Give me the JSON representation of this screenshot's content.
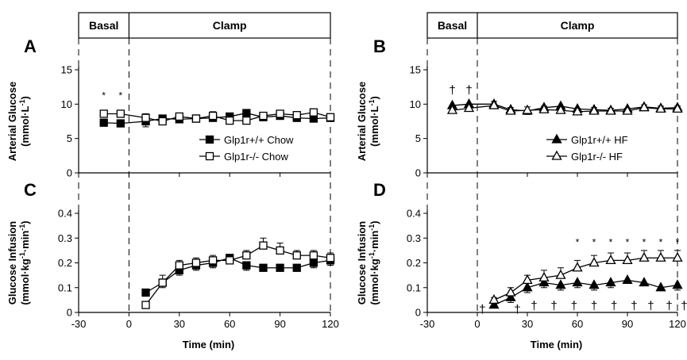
{
  "figure": {
    "phase_labels": {
      "basal": "Basal",
      "clamp": "Clamp"
    },
    "x_ticks": [
      "-30",
      "0",
      "30",
      "60",
      "90",
      "120"
    ],
    "x_label": "Time (min)"
  },
  "chart_data": [
    {
      "panel": "A",
      "type": "line",
      "ylabel_line1": "Arterial Glucose",
      "ylabel_line2": "(mmol·L-1)",
      "xlabel": "",
      "xlim": [
        -30,
        120
      ],
      "ylim": [
        0,
        15
      ],
      "y_ticks": [
        "0",
        "5",
        "10",
        "15"
      ],
      "x": [
        -15,
        -5,
        10,
        20,
        30,
        40,
        50,
        60,
        70,
        80,
        90,
        100,
        110,
        120
      ],
      "series": [
        {
          "name": "Glp1r+/+ Chow",
          "marker": "square",
          "filled": true,
          "values": [
            7.3,
            7.2,
            7.5,
            7.9,
            7.8,
            7.9,
            8.0,
            8.2,
            8.7,
            8.1,
            8.3,
            8.0,
            7.9,
            8.0
          ],
          "errors": [
            0.3,
            0.3,
            0.8,
            0.5,
            0.4,
            0.4,
            0.5,
            0.5,
            0.4,
            0.4,
            0.4,
            0.5,
            0.4,
            0.4
          ]
        },
        {
          "name": "Glp1r-/- Chow",
          "marker": "square",
          "filled": false,
          "values": [
            8.6,
            8.6,
            8.0,
            7.5,
            8.2,
            7.9,
            8.3,
            7.6,
            7.6,
            8.3,
            8.6,
            8.4,
            8.8,
            8.1
          ],
          "errors": [
            0.3,
            0.3,
            0.6,
            0.5,
            0.4,
            0.4,
            0.6,
            0.5,
            0.5,
            0.5,
            0.5,
            0.5,
            0.5,
            0.4
          ]
        }
      ],
      "annotations": [
        {
          "text": "*",
          "x": -15,
          "y": 10.8
        },
        {
          "text": "*",
          "x": -5,
          "y": 10.8
        }
      ]
    },
    {
      "panel": "B",
      "type": "line",
      "ylabel_line1": "Arterial Glucose",
      "ylabel_line2": "(mmol·L-1)",
      "xlabel": "",
      "xlim": [
        -30,
        120
      ],
      "ylim": [
        0,
        15
      ],
      "y_ticks": [
        "0",
        "5",
        "10",
        "15"
      ],
      "x": [
        -15,
        -5,
        10,
        20,
        30,
        40,
        50,
        60,
        70,
        80,
        90,
        100,
        110,
        120
      ],
      "series": [
        {
          "name": "Glp1r+/+ HF",
          "marker": "triangle",
          "filled": true,
          "values": [
            9.8,
            10.0,
            10.0,
            9.2,
            9.0,
            9.5,
            9.7,
            9.3,
            9.2,
            9.1,
            9.3,
            9.6,
            9.4,
            9.5
          ],
          "errors": [
            0.7,
            0.8,
            0.6,
            0.5,
            0.5,
            0.5,
            0.5,
            0.5,
            0.5,
            0.5,
            0.4,
            0.4,
            0.4,
            0.4
          ]
        },
        {
          "name": "Glp1r-/- HF",
          "marker": "triangle",
          "filled": false,
          "values": [
            9.1,
            9.4,
            9.8,
            9.0,
            9.1,
            9.2,
            9.1,
            8.9,
            9.0,
            9.0,
            9.0,
            9.5,
            9.3,
            9.3
          ],
          "errors": [
            0.6,
            0.6,
            0.6,
            0.5,
            0.5,
            0.5,
            0.5,
            0.5,
            0.5,
            0.4,
            0.4,
            0.4,
            0.4,
            0.4
          ]
        }
      ],
      "annotations": [
        {
          "text": "†",
          "x": -15,
          "y": 11.5
        },
        {
          "text": "†",
          "x": -5,
          "y": 11.5
        }
      ]
    },
    {
      "panel": "C",
      "type": "line",
      "ylabel_line1": "Glucose Infusion",
      "ylabel_line2": "(mmol·kg-1·min-1)",
      "xlabel": "Time (min)",
      "xlim": [
        -30,
        120
      ],
      "ylim": [
        0,
        0.4
      ],
      "y_ticks": [
        "0",
        "0.1",
        "0.2",
        "0.3",
        "0.4"
      ],
      "x": [
        10,
        20,
        30,
        40,
        50,
        60,
        70,
        80,
        90,
        100,
        110,
        120
      ],
      "series": [
        {
          "name": "Glp1r+/+ Chow",
          "marker": "square",
          "filled": true,
          "values": [
            0.08,
            0.12,
            0.17,
            0.19,
            0.2,
            0.22,
            0.19,
            0.18,
            0.18,
            0.18,
            0.2,
            0.21
          ],
          "errors": [
            0.01,
            0.02,
            0.02,
            0.02,
            0.02,
            0.02,
            0.02,
            0.01,
            0.01,
            0.01,
            0.02,
            0.02
          ]
        },
        {
          "name": "Glp1r-/- Chow",
          "marker": "square",
          "filled": false,
          "values": [
            0.03,
            0.12,
            0.19,
            0.2,
            0.21,
            0.21,
            0.23,
            0.27,
            0.25,
            0.23,
            0.23,
            0.22
          ],
          "errors": [
            0.01,
            0.03,
            0.02,
            0.02,
            0.02,
            0.02,
            0.02,
            0.03,
            0.03,
            0.02,
            0.02,
            0.02
          ]
        }
      ],
      "annotations": []
    },
    {
      "panel": "D",
      "type": "line",
      "ylabel_line1": "Glucose Infusion",
      "ylabel_line2": "(mmol·kg-1·min-1)",
      "xlabel": "Time (min)",
      "xlim": [
        -30,
        120
      ],
      "ylim": [
        0,
        0.4
      ],
      "y_ticks": [
        "0",
        "0.1",
        "0.2",
        "0.3",
        "0.4"
      ],
      "x": [
        10,
        20,
        30,
        40,
        50,
        60,
        70,
        80,
        90,
        100,
        110,
        120
      ],
      "series": [
        {
          "name": "Glp1r+/+ HF",
          "marker": "triangle",
          "filled": true,
          "values": [
            0.03,
            0.06,
            0.1,
            0.12,
            0.11,
            0.12,
            0.11,
            0.12,
            0.13,
            0.12,
            0.1,
            0.11
          ],
          "errors": [
            0.01,
            0.02,
            0.02,
            0.02,
            0.02,
            0.02,
            0.02,
            0.02,
            0.01,
            0.01,
            0.01,
            0.02
          ]
        },
        {
          "name": "Glp1r-/- HF",
          "marker": "triangle",
          "filled": false,
          "values": [
            0.05,
            0.08,
            0.13,
            0.14,
            0.15,
            0.18,
            0.2,
            0.21,
            0.21,
            0.22,
            0.22,
            0.22
          ],
          "errors": [
            0.01,
            0.02,
            0.02,
            0.03,
            0.03,
            0.03,
            0.03,
            0.03,
            0.03,
            0.03,
            0.03,
            0.03
          ]
        }
      ],
      "annotations": [
        {
          "text": "*",
          "x": 60,
          "y": 0.27
        },
        {
          "text": "*",
          "x": 70,
          "y": 0.27
        },
        {
          "text": "*",
          "x": 80,
          "y": 0.27
        },
        {
          "text": "*",
          "x": 90,
          "y": 0.27
        },
        {
          "text": "*",
          "x": 100,
          "y": 0.27
        },
        {
          "text": "*",
          "x": 110,
          "y": 0.27
        },
        {
          "text": "*",
          "x": 120,
          "y": 0.27
        },
        {
          "text": "†",
          "x": 3,
          "y": -0.003
        },
        {
          "text": "†",
          "x": 24,
          "y": -0.003
        },
        {
          "text": "†",
          "x": 34,
          "y": 0.012
        },
        {
          "text": "†",
          "x": 46,
          "y": 0.012
        },
        {
          "text": "†",
          "x": 58,
          "y": 0.012
        },
        {
          "text": "†",
          "x": 70,
          "y": 0.012
        },
        {
          "text": "†",
          "x": 82,
          "y": 0.012
        },
        {
          "text": "†",
          "x": 94,
          "y": 0.012
        },
        {
          "text": "†",
          "x": 104,
          "y": 0.012
        },
        {
          "text": "†",
          "x": 115,
          "y": 0.012
        },
        {
          "text": "†",
          "x": 124,
          "y": 0.012
        }
      ]
    }
  ]
}
